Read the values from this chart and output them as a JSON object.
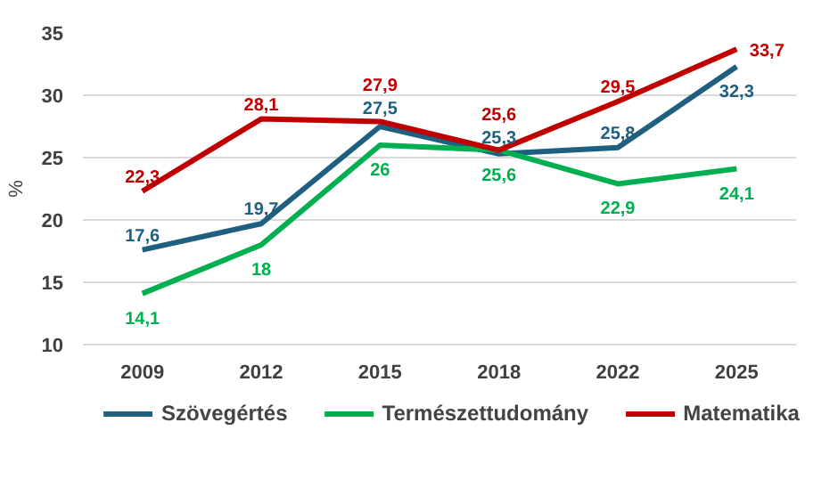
{
  "chart_data": {
    "type": "line",
    "ylabel": "%",
    "categories": [
      "2009",
      "2012",
      "2015",
      "2018",
      "2022",
      "2025"
    ],
    "series": [
      {
        "name": "Szövegértés",
        "color": "#1f5f7f",
        "values": [
          17.6,
          19.7,
          27.5,
          25.3,
          25.8,
          32.3
        ],
        "value_labels": [
          "17,6",
          "19,7",
          "27,5",
          "25,3",
          "25,8",
          "32,3"
        ]
      },
      {
        "name": "Természettudomány",
        "color": "#00b050",
        "values": [
          14.1,
          18,
          26,
          25.6,
          22.9,
          24.1
        ],
        "value_labels": [
          "14,1",
          "18",
          "26",
          "25,6",
          "22,9",
          "24,1"
        ]
      },
      {
        "name": "Matematika",
        "color": "#c00000",
        "values": [
          22.3,
          28.1,
          27.9,
          25.6,
          29.5,
          33.7
        ],
        "value_labels": [
          "22,3",
          "28,1",
          "27,9",
          "25,6",
          "29,5",
          "33,7"
        ]
      }
    ],
    "ylim": [
      10,
      35
    ],
    "yticks": [
      10,
      15,
      20,
      25,
      30,
      35
    ],
    "grid": "y",
    "legend": "bottom",
    "line_style": "solid",
    "marker": "none"
  }
}
